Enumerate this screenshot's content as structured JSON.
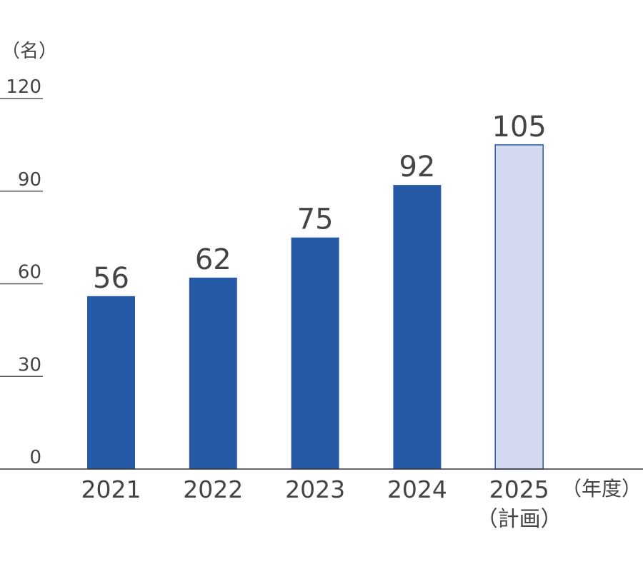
{
  "chart_data": {
    "type": "bar",
    "categories": [
      "2021",
      "2022",
      "2023",
      "2024",
      "2025"
    ],
    "category_sublabels": [
      "",
      "",
      "",
      "",
      "（計画）"
    ],
    "values": [
      56,
      62,
      75,
      92,
      105
    ],
    "data_labels": [
      "56",
      "62",
      "75",
      "92",
      "105"
    ],
    "planned": [
      false,
      false,
      false,
      false,
      true
    ],
    "ylabel": "（名）",
    "xlabel": "（年度）",
    "ylim": [
      0,
      120
    ],
    "yticks": [
      0,
      30,
      60,
      90,
      120
    ],
    "grid": false,
    "colors": {
      "actual": "#2659a6",
      "planned_fill": "#d3d9ee",
      "planned_stroke": "#2659a6",
      "axis": "#333333"
    }
  }
}
